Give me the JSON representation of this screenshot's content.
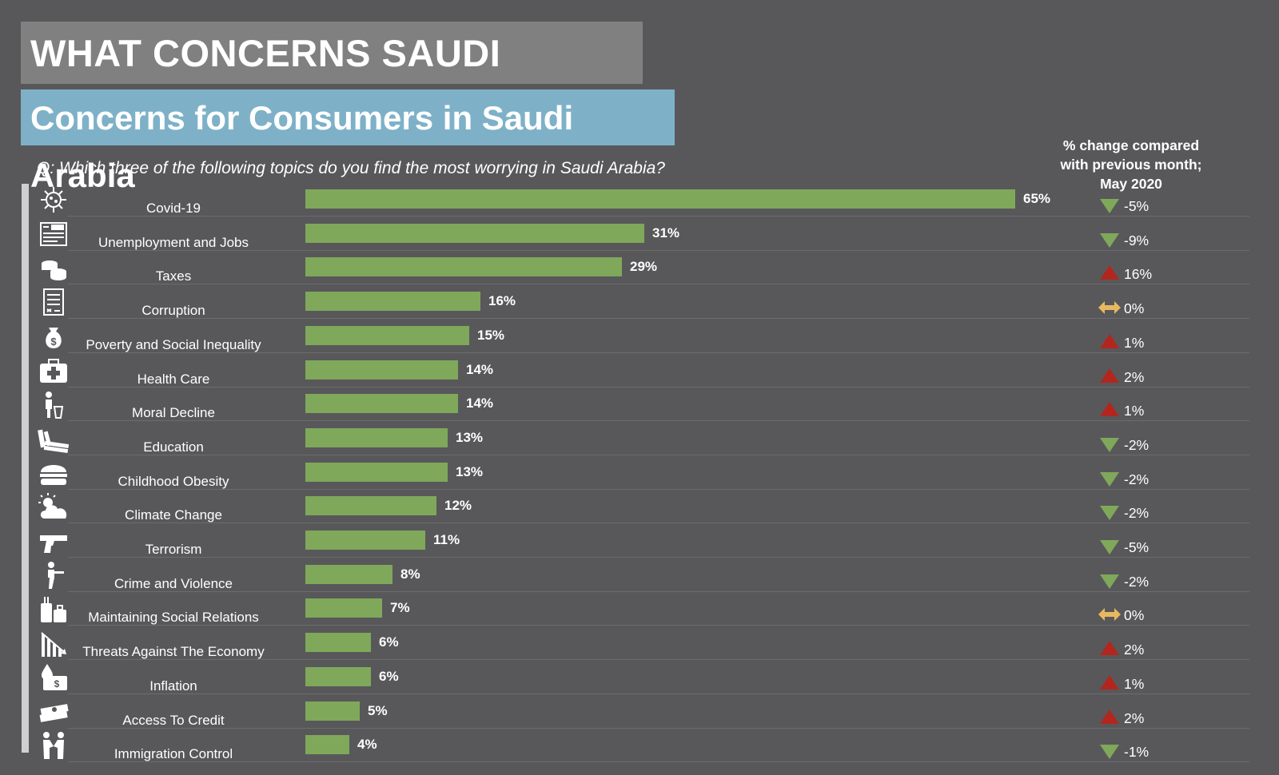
{
  "header": {
    "title": "WHAT CONCERNS SAUDI ARABIA",
    "subtitle": "Concerns for Consumers in Saudi Arabia",
    "question": "Q: Which three of the following topics do you find the most worrying in Saudi Arabia?",
    "change_header_line1": "% change compared",
    "change_header_line2": "with previous month;",
    "change_header_line3": "May 2020"
  },
  "colors": {
    "bar": "#7fa85b",
    "down": "#7fa85b",
    "up": "#b3261e",
    "flat": "#e8b860"
  },
  "chart_data": {
    "type": "bar",
    "orientation": "horizontal",
    "title": "Concerns for Consumers in Saudi Arabia",
    "xlim": [
      0,
      65
    ],
    "categories": [
      "Covid-19",
      "Unemployment and Jobs",
      "Taxes",
      "Corruption",
      "Poverty and Social Inequality",
      "Health Care",
      "Moral Decline",
      "Education",
      "Childhood Obesity",
      "Climate Change",
      "Terrorism",
      "Crime and Violence",
      "Maintaining Social Relations",
      "Threats Against The Economy",
      "Inflation",
      "Access To Credit",
      "Immigration Control"
    ],
    "values": [
      65,
      31,
      29,
      16,
      15,
      14,
      14,
      13,
      13,
      12,
      11,
      8,
      7,
      6,
      6,
      5,
      4
    ],
    "value_labels": [
      "65%",
      "31%",
      "29%",
      "16%",
      "15%",
      "14%",
      "14%",
      "13%",
      "13%",
      "12%",
      "11%",
      "8%",
      "7%",
      "6%",
      "6%",
      "5%",
      "4%"
    ],
    "change_labels": [
      "-5%",
      "-9%",
      "16%",
      "0%",
      "1%",
      "2%",
      "1%",
      "-2%",
      "-2%",
      "-2%",
      "-5%",
      "-2%",
      "0%",
      "2%",
      "1%",
      "2%",
      "-1%"
    ],
    "change_direction": [
      "down",
      "down",
      "up",
      "flat",
      "up",
      "up",
      "up",
      "down",
      "down",
      "down",
      "down",
      "down",
      "flat",
      "up",
      "up",
      "up",
      "down"
    ],
    "icons": [
      "virus-icon",
      "newspaper-jobs-icon",
      "coins-icon",
      "document-icon",
      "money-bag-icon",
      "first-aid-kit-icon",
      "person-icon",
      "books-icon",
      "burger-icon",
      "sun-cloud-icon",
      "gun-icon",
      "person-with-gun-icon",
      "luggage-icon",
      "falling-chart-icon",
      "money-drop-icon",
      "cash-stack-icon",
      "handshake-icon"
    ]
  }
}
